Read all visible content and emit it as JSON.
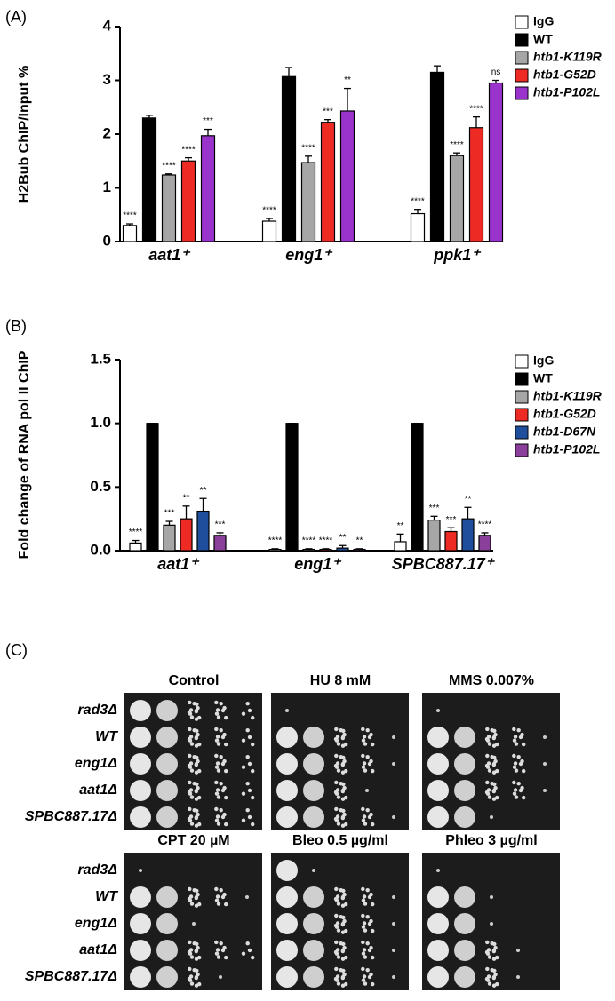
{
  "chart_data": [
    {
      "type": "bar",
      "panel_label": "(A)",
      "y_label": "H2Bub ChIP/Input %",
      "categories": [
        "aat1⁺",
        "eng1⁺",
        "ppk1⁺"
      ],
      "ylim": [
        0,
        4
      ],
      "yticks": [
        0,
        1,
        2,
        3,
        4
      ],
      "series": [
        {
          "name": "IgG",
          "color": "#ffffff",
          "values": [
            0.3,
            0.38,
            0.52
          ],
          "errors": [
            0.03,
            0.05,
            0.08
          ],
          "significance": [
            "****",
            "****",
            "****"
          ]
        },
        {
          "name": "WT",
          "color": "#000000",
          "values": [
            2.3,
            3.07,
            3.15
          ],
          "errors": [
            0.05,
            0.17,
            0.12
          ]
        },
        {
          "name": "htb1-K119R",
          "color": "#a6a6a6",
          "values": [
            1.24,
            1.47,
            1.6
          ],
          "errors": [
            0.02,
            0.12,
            0.05
          ],
          "significance": [
            "****",
            "****",
            "****"
          ]
        },
        {
          "name": "htb1-G52D",
          "color": "#ee2a24",
          "values": [
            1.5,
            2.22,
            2.12
          ],
          "errors": [
            0.06,
            0.05,
            0.2
          ],
          "significance": [
            "****",
            "***",
            "****"
          ]
        },
        {
          "name": "htb1-P102L",
          "color": "#9933cc",
          "values": [
            1.97,
            2.43,
            2.95
          ],
          "errors": [
            0.12,
            0.42,
            0.05
          ],
          "significance": [
            "***",
            "**",
            "ns"
          ]
        }
      ]
    },
    {
      "type": "bar",
      "panel_label": "(B)",
      "y_label": "Fold change of RNA pol II ChIP",
      "categories": [
        "aat1⁺",
        "eng1⁺",
        "SPBC887.17⁺"
      ],
      "ylim": [
        0,
        1.5
      ],
      "yticks": [
        {
          "value": 0,
          "label": "0.0"
        },
        {
          "value": 0.5,
          "label": "0.5"
        },
        {
          "value": 1,
          "label": "1.0"
        },
        {
          "value": 1.5,
          "label": "1.5"
        }
      ],
      "series": [
        {
          "name": "IgG",
          "color": "#ffffff",
          "values": [
            0.06,
            0.01,
            0.07
          ],
          "errors": [
            0.02,
            0.005,
            0.06
          ],
          "significance": [
            "****",
            "****",
            "**"
          ]
        },
        {
          "name": "WT",
          "color": "#000000",
          "values": [
            1,
            1,
            1
          ],
          "errors": [
            0,
            0,
            0
          ]
        },
        {
          "name": "htb1-K119R",
          "color": "#a6a6a6",
          "values": [
            0.2,
            0.01,
            0.24
          ],
          "errors": [
            0.03,
            0.005,
            0.03
          ],
          "significance": [
            "***",
            "****",
            "***"
          ]
        },
        {
          "name": "htb1-G52D",
          "color": "#ee2a24",
          "values": [
            0.25,
            0.01,
            0.15
          ],
          "errors": [
            0.1,
            0.005,
            0.03
          ],
          "significance": [
            "**",
            "****",
            "***"
          ]
        },
        {
          "name": "htb1-D67N",
          "color": "#1f4e9c",
          "values": [
            0.31,
            0.02,
            0.25
          ],
          "errors": [
            0.1,
            0.02,
            0.09
          ],
          "significance": [
            "**",
            "**",
            "**"
          ]
        },
        {
          "name": "htb1-P102L",
          "color": "#8a3f9a",
          "values": [
            0.12,
            0.01,
            0.12
          ],
          "errors": [
            0.02,
            0.005,
            0.02
          ],
          "significance": [
            "***",
            "**",
            "****"
          ]
        }
      ]
    }
  ],
  "panel_c": {
    "label": "(C)",
    "conditions": [
      "Control",
      "HU 8 mM",
      "MMS 0.007%",
      "CPT 20 µM",
      "Bleo 0.5 µg/ml",
      "Phleo 3 µg/ml"
    ],
    "strains": [
      "rad3Δ",
      "WT",
      "eng1Δ",
      "aat1Δ",
      "SPBC887.17Δ"
    ]
  }
}
